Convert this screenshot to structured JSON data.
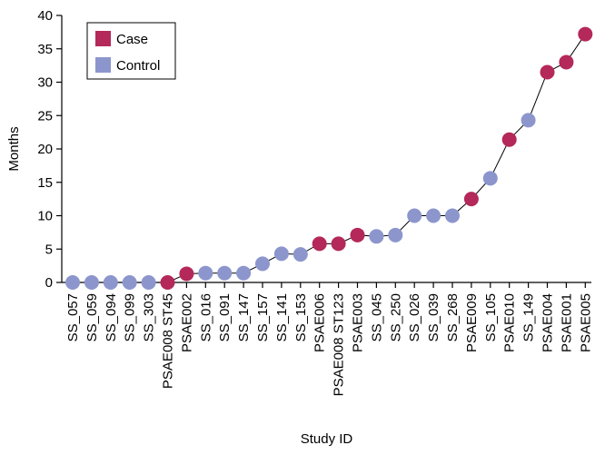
{
  "chart_data": {
    "type": "scatter",
    "title": "",
    "xlabel": "Study ID",
    "ylabel": "Months",
    "ylim": [
      0,
      40
    ],
    "yticks": [
      0,
      5,
      10,
      15,
      20,
      25,
      30,
      35,
      40
    ],
    "grid": false,
    "connected_line": true,
    "legend_position": "top-left",
    "legend": [
      {
        "label": "Case",
        "color": "#b4285a"
      },
      {
        "label": "Control",
        "color": "#8c96cd"
      }
    ],
    "categories": [
      "SS_057",
      "SS_059",
      "SS_094",
      "SS_099",
      "SS_303",
      "PSAE008 ST45",
      "PSAE002",
      "SS_016",
      "SS_091",
      "SS_147",
      "SS_157",
      "SS_141",
      "SS_153",
      "PSAE006",
      "PSAE008 ST123",
      "PSAE003",
      "SS_045",
      "SS_250",
      "SS_026",
      "SS_039",
      "SS_268",
      "PSAE009",
      "SS_105",
      "PSAE010",
      "SS_149",
      "PSAE004",
      "PSAE001",
      "PSAE005"
    ],
    "values": [
      0,
      0,
      0,
      0,
      0,
      0,
      1.3,
      1.4,
      1.4,
      1.4,
      2.8,
      4.3,
      4.2,
      5.8,
      5.8,
      7.1,
      6.9,
      7.1,
      10,
      10,
      10,
      12.5,
      15.6,
      21.4,
      24.3,
      31.5,
      33,
      37.2
    ],
    "groups": [
      "Control",
      "Control",
      "Control",
      "Control",
      "Control",
      "Case",
      "Case",
      "Control",
      "Control",
      "Control",
      "Control",
      "Control",
      "Control",
      "Case",
      "Case",
      "Case",
      "Control",
      "Control",
      "Control",
      "Control",
      "Control",
      "Case",
      "Control",
      "Case",
      "Control",
      "Case",
      "Case",
      "Case"
    ]
  }
}
